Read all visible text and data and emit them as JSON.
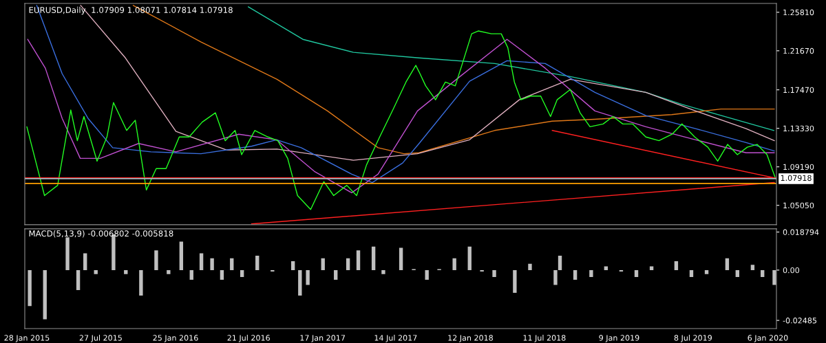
{
  "chart_data": [
    {
      "type": "line",
      "title": "EURUSD,Daily  1.07909 1.08071 1.07814 1.07918",
      "tick_labels": "y",
      "xlim": [
        "2015-01-23",
        "2020-01-27"
      ],
      "ylim": [
        1.0297,
        1.2676
      ],
      "yticks": [
        {
          "value": 1.2581,
          "label": "1.25810"
        },
        {
          "value": 1.2167,
          "label": "1.21670"
        },
        {
          "value": 1.1747,
          "label": "1.17470"
        },
        {
          "value": 1.1333,
          "label": "1.13330"
        },
        {
          "value": 1.0919,
          "label": "1.09190"
        },
        {
          "value": 1.0505,
          "label": "1.05050"
        }
      ],
      "ref_lines": [
        {
          "axis": "y",
          "value": 1.08,
          "label": null,
          "color": "#ff2020"
        },
        {
          "axis": "y",
          "value": 1.07918,
          "label": "1.07918",
          "color": "#a0b8c0"
        },
        {
          "axis": "y",
          "value": 1.074,
          "label": null,
          "color": "#ffa000"
        }
      ],
      "series": [
        {
          "color": "#20c8a0",
          "x": [
            "2016-07-20",
            "2016-11-30",
            "2017-04-02",
            "2017-09-09",
            "2018-03-12",
            "2018-09-12",
            "2019-03-15",
            "2019-06-11",
            "2019-09-15",
            "2020-01-21"
          ],
          "values": [
            1.264,
            1.229,
            1.215,
            1.209,
            1.203,
            1.189,
            1.172,
            1.159,
            1.147,
            1.131
          ]
        },
        {
          "color": "#e07818",
          "x": [
            "2015-10-14",
            "2016-03-28",
            "2016-09-28",
            "2017-01-29",
            "2017-06-01",
            "2017-08-03",
            "2017-09-09",
            "2018-03-12",
            "2018-07-30",
            "2018-11-11",
            "2019-05-17",
            "2019-09-14",
            "2020-01-22"
          ],
          "values": [
            1.2655,
            1.226,
            1.186,
            1.152,
            1.1125,
            1.106,
            1.107,
            1.131,
            1.141,
            1.143,
            1.148,
            1.154,
            1.154
          ]
        },
        {
          "color": "#e0b0c0",
          "x": [
            "2015-06-08",
            "2015-09-25",
            "2016-01-26",
            "2016-05-28",
            "2016-09-28",
            "2017-04-02",
            "2017-09-05",
            "2018-01-10",
            "2018-05-11",
            "2018-09-12",
            "2019-03-15",
            "2019-07-14",
            "2019-11-14",
            "2020-01-22"
          ],
          "values": [
            1.2655,
            1.209,
            1.13,
            1.11,
            1.111,
            1.099,
            1.106,
            1.121,
            1.164,
            1.186,
            1.172,
            1.152,
            1.133,
            1.12
          ]
        },
        {
          "color": "#3a6fe0",
          "x": [
            "2015-02-21",
            "2015-04-24",
            "2015-06-26",
            "2015-08-25",
            "2015-11-26",
            "2016-03-27",
            "2016-07-28",
            "2016-09-27",
            "2016-11-26",
            "2017-03-29",
            "2017-05-18",
            "2017-07-31",
            "2017-09-09",
            "2018-01-10",
            "2018-04-11",
            "2018-07-13",
            "2018-11-11",
            "2019-03-15",
            "2019-07-14",
            "2019-11-14",
            "2020-01-22"
          ],
          "values": [
            1.2655,
            1.192,
            1.144,
            1.1125,
            1.108,
            1.106,
            1.114,
            1.121,
            1.1125,
            1.084,
            1.075,
            1.096,
            1.117,
            1.184,
            1.206,
            1.203,
            1.172,
            1.147,
            1.133,
            1.118,
            1.109
          ]
        },
        {
          "color": "#c050d0",
          "x": [
            "2015-01-30",
            "2015-03-14",
            "2015-04-24",
            "2015-06-07",
            "2015-07-26",
            "2015-10-27",
            "2016-01-26",
            "2016-06-27",
            "2016-09-27",
            "2016-12-28",
            "2017-03-29",
            "2017-06-01",
            "2017-09-05",
            "2017-12-09",
            "2018-04-11",
            "2018-07-13",
            "2018-11-11",
            "2019-03-15",
            "2019-07-14",
            "2019-11-14",
            "2020-01-22"
          ],
          "values": [
            1.229,
            1.198,
            1.144,
            1.101,
            1.101,
            1.117,
            1.108,
            1.127,
            1.121,
            1.087,
            1.064,
            1.084,
            1.152,
            1.186,
            1.229,
            1.198,
            1.152,
            1.135,
            1.121,
            1.107,
            1.107
          ]
        },
        {
          "color": "#ff2020",
          "x": [
            "2016-07-28",
            "2020-01-22"
          ],
          "values": [
            1.0305,
            1.075
          ]
        },
        {
          "color": "#ff2020",
          "x": [
            "2018-07-30",
            "2020-01-22"
          ],
          "values": [
            1.131,
            1.08
          ]
        },
        {
          "color": "#22ff22",
          "x": [
            "2015-01-28",
            "2015-03-12",
            "2015-04-13",
            "2015-05-15",
            "2015-05-31",
            "2015-06-16",
            "2015-07-18",
            "2015-08-11",
            "2015-08-27",
            "2015-09-28",
            "2015-10-19",
            "2015-11-15",
            "2015-12-09",
            "2016-01-02",
            "2016-02-03",
            "2016-02-27",
            "2016-03-30",
            "2016-05-01",
            "2016-05-25",
            "2016-06-18",
            "2016-07-04",
            "2016-08-05",
            "2016-09-06",
            "2016-09-30",
            "2016-10-24",
            "2016-11-17",
            "2016-12-19",
            "2017-01-20",
            "2017-02-13",
            "2017-03-17",
            "2017-04-10",
            "2017-05-04",
            "2017-06-05",
            "2017-07-07",
            "2017-08-08",
            "2017-09-01",
            "2017-09-09",
            "2017-09-25",
            "2017-10-19",
            "2017-11-12",
            "2017-12-06",
            "2017-12-22",
            "2018-01-15",
            "2018-01-31",
            "2018-03-04",
            "2018-03-28",
            "2018-04-13",
            "2018-04-29",
            "2018-05-15",
            "2018-06-08",
            "2018-07-02",
            "2018-07-26",
            "2018-08-11",
            "2018-09-12",
            "2018-10-06",
            "2018-10-30",
            "2018-12-01",
            "2018-12-25",
            "2019-01-18",
            "2019-02-11",
            "2019-03-15",
            "2019-04-16",
            "2019-05-18",
            "2019-06-11",
            "2019-07-12",
            "2019-08-13",
            "2019-09-06",
            "2019-09-30",
            "2019-10-24",
            "2019-11-17",
            "2019-12-11",
            "2020-01-04",
            "2020-01-25"
          ],
          "values": [
            1.135,
            1.061,
            1.072,
            1.153,
            1.12,
            1.146,
            1.098,
            1.124,
            1.161,
            1.131,
            1.142,
            1.067,
            1.09,
            1.09,
            1.124,
            1.124,
            1.14,
            1.15,
            1.12,
            1.131,
            1.105,
            1.131,
            1.124,
            1.12,
            1.101,
            1.061,
            1.046,
            1.076,
            1.061,
            1.072,
            1.061,
            1.094,
            1.124,
            1.153,
            1.183,
            1.201,
            1.194,
            1.179,
            1.164,
            1.183,
            1.179,
            1.201,
            1.235,
            1.238,
            1.235,
            1.235,
            1.22,
            1.183,
            1.164,
            1.168,
            1.168,
            1.146,
            1.164,
            1.175,
            1.15,
            1.135,
            1.138,
            1.146,
            1.138,
            1.138,
            1.124,
            1.12,
            1.127,
            1.138,
            1.124,
            1.113,
            1.098,
            1.116,
            1.105,
            1.113,
            1.116,
            1.105,
            1.079
          ]
        }
      ]
    },
    {
      "type": "bar",
      "title": "MACD(5,13,9) -0.006802 -0.005818",
      "xlim": [
        "2015-01-23",
        "2020-01-27"
      ],
      "ylim": [
        -0.0289,
        0.0204
      ],
      "xticks": [
        {
          "value": "2015-01-28",
          "label": "28 Jan 2015"
        },
        {
          "value": "2015-07-27",
          "label": "27 Jul 2015"
        },
        {
          "value": "2016-01-25",
          "label": "25 Jan 2016"
        },
        {
          "value": "2016-07-21",
          "label": "21 Jul 2016"
        },
        {
          "value": "2017-01-17",
          "label": "17 Jan 2017"
        },
        {
          "value": "2017-07-14",
          "label": "14 Jul 2017"
        },
        {
          "value": "2018-01-12",
          "label": "12 Jan 2018"
        },
        {
          "value": "2018-07-11",
          "label": "11 Jul 2018"
        },
        {
          "value": "2019-01-09",
          "label": "9 Jan 2019"
        },
        {
          "value": "2019-07-08",
          "label": "8 Jul 2019"
        },
        {
          "value": "2020-01-06",
          "label": "6 Jan 2020"
        }
      ],
      "yticks": [
        0.018794,
        {
          "value": 0,
          "label": "0.00"
        },
        -0.02485
      ],
      "series": [
        {
          "color": "#c0c0c0",
          "x": [
            "2015-02-04",
            "2015-03-13",
            "2015-04-07",
            "2015-05-07",
            "2015-06-02",
            "2015-06-19",
            "2015-07-15",
            "2015-08-27",
            "2015-09-26",
            "2015-11-02",
            "2015-12-09",
            "2016-01-08",
            "2016-02-08",
            "2016-03-04",
            "2016-03-28",
            "2016-04-23",
            "2016-05-17",
            "2016-06-10",
            "2016-07-05",
            "2016-08-11",
            "2016-09-17",
            "2016-11-06",
            "2016-11-23",
            "2016-12-12",
            "2017-01-18",
            "2017-02-18",
            "2017-03-20",
            "2017-04-14",
            "2017-05-21",
            "2017-06-14",
            "2017-07-27",
            "2017-08-27",
            "2017-09-28",
            "2017-10-28",
            "2017-12-04",
            "2018-01-10",
            "2018-02-09",
            "2018-03-11",
            "2018-04-30",
            "2018-06-06",
            "2018-08-07",
            "2018-08-18",
            "2018-09-24",
            "2018-11-02",
            "2018-12-08",
            "2019-01-14",
            "2019-02-20",
            "2019-03-29",
            "2019-05-28",
            "2019-07-04",
            "2019-08-10",
            "2019-09-29",
            "2019-10-24",
            "2019-11-30",
            "2019-12-24",
            "2020-01-22"
          ],
          "values": [
            -0.0178,
            -0.0243,
            0.0,
            0.0162,
            -0.0099,
            0.0083,
            -0.002,
            0.0175,
            -0.002,
            -0.0126,
            0.0097,
            -0.002,
            0.0141,
            -0.0048,
            0.0083,
            0.0058,
            -0.0048,
            0.0058,
            -0.0034,
            0.0071,
            -0.0007,
            0.0044,
            -0.0126,
            -0.0073,
            0.0058,
            -0.0048,
            0.0058,
            0.0097,
            0.0116,
            -0.002,
            0.011,
            0.0005,
            -0.0048,
            0.0005,
            0.0058,
            0.0116,
            -0.0007,
            -0.0034,
            -0.0112,
            0.0031,
            -0.0073,
            0.0071,
            -0.0048,
            -0.0034,
            0.0018,
            -0.0007,
            -0.0034,
            0.0018,
            0.0044,
            -0.0034,
            -0.002,
            0.0058,
            -0.0034,
            0.0026,
            -0.0034,
            -0.0073
          ]
        }
      ]
    }
  ]
}
